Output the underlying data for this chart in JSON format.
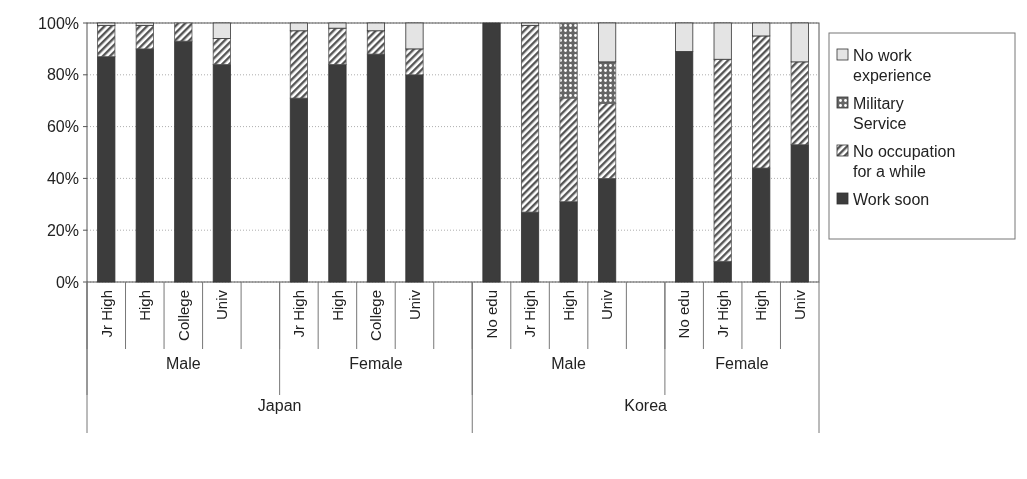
{
  "chart_data": {
    "type": "bar",
    "stacked": true,
    "categories": [
      "Jr High",
      "High",
      "College",
      "Univ",
      null,
      "Jr High",
      "High",
      "College",
      "Univ",
      null,
      "No edu",
      "Jr High",
      "High",
      "Univ",
      null,
      "No edu",
      "Jr High",
      "High",
      "Univ"
    ],
    "series": [
      {
        "name": "Work soon",
        "color": "#3c3c3c",
        "values": [
          87,
          90,
          93,
          84,
          null,
          71,
          84,
          88,
          80,
          null,
          100,
          27,
          31,
          40,
          null,
          89,
          8,
          44,
          53
        ]
      },
      {
        "name": "No occupation for a while",
        "color": "#555555",
        "values": [
          12,
          9,
          7,
          10,
          null,
          26,
          14,
          9,
          10,
          null,
          0,
          72,
          40,
          29,
          null,
          0,
          78,
          51,
          32
        ]
      },
      {
        "name": "Military Service",
        "color": "#666666",
        "values": [
          0,
          0,
          0,
          0,
          null,
          0,
          0,
          0,
          0,
          null,
          0,
          0,
          29,
          16,
          null,
          0,
          0,
          0,
          0
        ]
      },
      {
        "name": "No work experience",
        "color": "#e4e4e4",
        "values": [
          1,
          1,
          0,
          6,
          null,
          3,
          2,
          3,
          10,
          null,
          0,
          1,
          0,
          15,
          null,
          11,
          14,
          5,
          15
        ]
      }
    ],
    "ylim": [
      0,
      100
    ],
    "yticks": [
      {
        "value": 0,
        "label": "0%"
      },
      {
        "value": 20,
        "label": "20%"
      },
      {
        "value": 40,
        "label": "40%"
      },
      {
        "value": 60,
        "label": "60%"
      },
      {
        "value": 80,
        "label": "80%"
      },
      {
        "value": 100,
        "label": "100%"
      }
    ],
    "grid": "y",
    "legend": "right",
    "annotations": [
      "Male",
      "Female",
      "Male",
      "Female",
      "Japan",
      "Korea"
    ]
  }
}
